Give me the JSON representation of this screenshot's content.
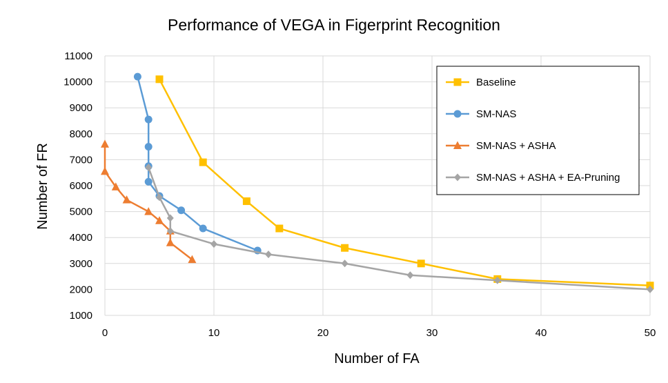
{
  "chart_data": {
    "type": "scatter",
    "title": "Performance of VEGA in Figerprint Recognition",
    "xlabel": "Number of FA",
    "ylabel": "Number of FR",
    "xlim": [
      0,
      50
    ],
    "ylim": [
      1000,
      11000
    ],
    "xticks": [
      0,
      10,
      20,
      30,
      40,
      50
    ],
    "yticks": [
      1000,
      2000,
      3000,
      4000,
      5000,
      6000,
      7000,
      8000,
      9000,
      10000,
      11000
    ],
    "grid": true,
    "legend_position": "top-right",
    "series": [
      {
        "name": "Baseline",
        "color": "#FFC000",
        "marker": "square",
        "x": [
          5,
          9,
          13,
          16,
          22,
          29,
          36,
          50
        ],
        "y": [
          10100,
          6900,
          5400,
          4350,
          3600,
          3000,
          2400,
          2150
        ]
      },
      {
        "name": "SM-NAS",
        "color": "#5B9BD5",
        "marker": "circle",
        "x": [
          3,
          4,
          4,
          4,
          4,
          5,
          7,
          9,
          14
        ],
        "y": [
          10200,
          8550,
          7500,
          6750,
          6150,
          5600,
          5050,
          4350,
          3500
        ]
      },
      {
        "name": "SM-NAS + ASHA",
        "color": "#ED7D31",
        "marker": "triangle",
        "x": [
          0,
          0,
          1,
          2,
          4,
          5,
          6,
          6,
          8
        ],
        "y": [
          7600,
          6550,
          5950,
          5450,
          5000,
          4650,
          4250,
          3800,
          3150
        ]
      },
      {
        "name": "SM-NAS + ASHA + EA-Pruning",
        "color": "#A5A5A5",
        "marker": "diamond",
        "x": [
          4,
          5,
          6,
          6,
          10,
          15,
          22,
          28,
          36,
          50
        ],
        "y": [
          6700,
          5550,
          4750,
          4250,
          3750,
          3350,
          3000,
          2550,
          2350,
          2000
        ]
      }
    ]
  }
}
